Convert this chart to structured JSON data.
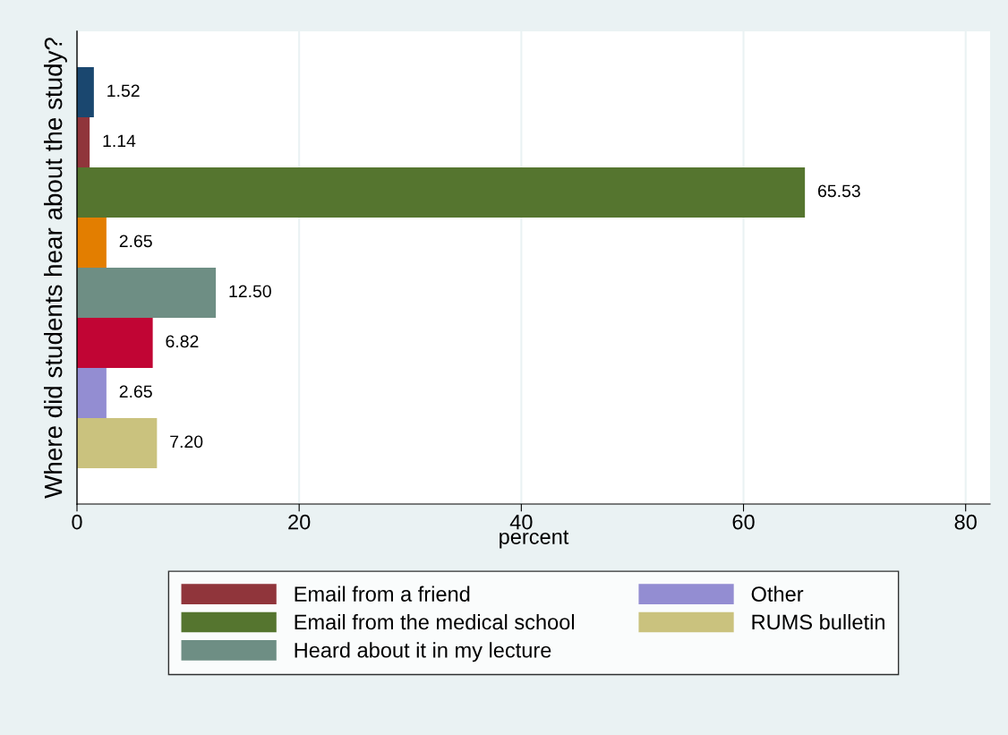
{
  "chart_data": {
    "type": "bar",
    "orientation": "horizontal",
    "ylabel": "Where did students hear about the study?",
    "xlabel": "percent",
    "categories": [
      null
    ],
    "series": [
      {
        "color": "#1a476f",
        "values": [
          1.52
        ],
        "value_labels": [
          "1.52"
        ]
      },
      {
        "name": "Email from a friend",
        "color": "#90353b",
        "values": [
          1.14
        ],
        "value_labels": [
          "1.14"
        ]
      },
      {
        "name": "Email from the medical school",
        "color": "#55752f",
        "values": [
          65.53
        ],
        "value_labels": [
          "65.53"
        ]
      },
      {
        "color": "#e37e00",
        "values": [
          2.65
        ],
        "value_labels": [
          "2.65"
        ]
      },
      {
        "name": "Heard about it in my lecture",
        "color": "#6e8e84",
        "values": [
          12.5
        ],
        "value_labels": [
          "12.50"
        ]
      },
      {
        "color": "#c10534",
        "values": [
          6.82
        ],
        "value_labels": [
          "6.82"
        ]
      },
      {
        "name": "Other",
        "color": "#938dd2",
        "values": [
          2.65
        ],
        "value_labels": [
          "2.65"
        ]
      },
      {
        "name": "RUMS bulletin",
        "color": "#cac27e",
        "values": [
          7.2
        ],
        "value_labels": [
          "7.20"
        ]
      }
    ],
    "xlim": [
      0,
      82.2
    ],
    "xticks": [
      0,
      20,
      40,
      60,
      80
    ],
    "grid": "x",
    "legend": "bottom"
  }
}
